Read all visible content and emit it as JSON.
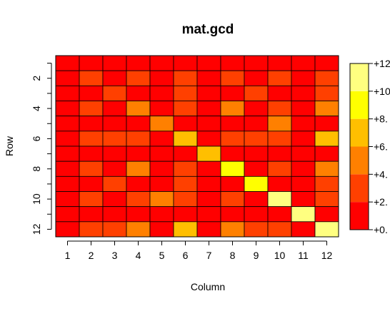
{
  "chart_data": {
    "type": "heatmap",
    "title": "mat.gcd",
    "xlabel": "Column",
    "ylabel": "Row",
    "rows": 12,
    "cols": 12,
    "x_ticks": [
      "1",
      "2",
      "3",
      "4",
      "5",
      "6",
      "7",
      "8",
      "9",
      "10",
      "11",
      "12"
    ],
    "y_ticks": [
      "2",
      "4",
      "6",
      "8",
      "10",
      "12"
    ],
    "y_tick_rows": [
      2,
      4,
      6,
      8,
      10,
      12
    ],
    "values": [
      [
        1,
        1,
        1,
        1,
        1,
        1,
        1,
        1,
        1,
        1,
        1,
        1
      ],
      [
        1,
        2,
        1,
        2,
        1,
        2,
        1,
        2,
        1,
        2,
        1,
        2
      ],
      [
        1,
        1,
        3,
        1,
        1,
        3,
        1,
        1,
        3,
        1,
        1,
        3
      ],
      [
        1,
        2,
        1,
        4,
        1,
        2,
        1,
        4,
        1,
        2,
        1,
        4
      ],
      [
        1,
        1,
        1,
        1,
        5,
        1,
        1,
        1,
        1,
        5,
        1,
        1
      ],
      [
        1,
        2,
        3,
        2,
        1,
        6,
        1,
        2,
        3,
        2,
        1,
        6
      ],
      [
        1,
        1,
        1,
        1,
        1,
        1,
        7,
        1,
        1,
        1,
        1,
        1
      ],
      [
        1,
        2,
        1,
        4,
        1,
        2,
        1,
        8,
        1,
        2,
        1,
        4
      ],
      [
        1,
        1,
        3,
        1,
        1,
        3,
        1,
        1,
        9,
        1,
        1,
        3
      ],
      [
        1,
        2,
        1,
        2,
        5,
        2,
        1,
        2,
        1,
        10,
        1,
        2
      ],
      [
        1,
        1,
        1,
        1,
        1,
        1,
        1,
        1,
        1,
        1,
        11,
        1
      ],
      [
        1,
        2,
        3,
        4,
        1,
        6,
        1,
        4,
        3,
        2,
        1,
        12
      ]
    ],
    "value_range": [
      0,
      12
    ],
    "legend_labels": [
      "+0.",
      "+2.",
      "+4.",
      "+6.",
      "+8.",
      "+10",
      "+12"
    ],
    "bins": [
      {
        "min": 0,
        "max": 2,
        "color": "#FF0000"
      },
      {
        "min": 2,
        "max": 4,
        "color": "#FF4000"
      },
      {
        "min": 4,
        "max": 6,
        "color": "#FF8000"
      },
      {
        "min": 6,
        "max": 8,
        "color": "#FFBF00"
      },
      {
        "min": 8,
        "max": 10,
        "color": "#FFFF00"
      },
      {
        "min": 10,
        "max": 12,
        "color": "#FFFF80"
      }
    ],
    "legend_position": "right",
    "grid": false
  }
}
